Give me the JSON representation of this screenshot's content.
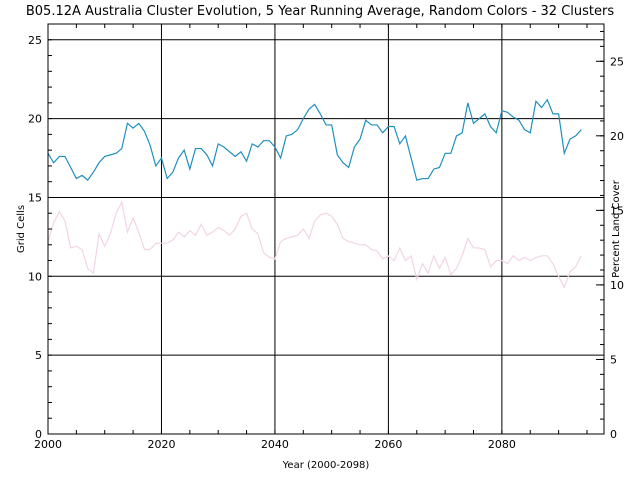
{
  "chart_data": {
    "type": "line",
    "title": "B05.12A Australia Cluster Evolution, 5 Year Running Average, Random Colors - 32 Clusters",
    "xlabel": "Year (2000-2098)",
    "ylabel": "Grid Cells",
    "y2label": "Percent Land Cover",
    "xlim": [
      2000,
      2098
    ],
    "ylim": [
      0,
      26
    ],
    "y2lim": [
      0,
      27.5
    ],
    "xticks": [
      "2000",
      "2020",
      "2040",
      "2060",
      "2080"
    ],
    "yticks": [
      "0",
      "5",
      "10",
      "15",
      "20",
      "25"
    ],
    "y2ticks": [
      "0",
      "5",
      "10",
      "15",
      "20",
      "25"
    ],
    "grid": true,
    "series": [
      {
        "color": "#1f8fbf",
        "x": [
          2000,
          2001,
          2002,
          2003,
          2004,
          2005,
          2006,
          2007,
          2008,
          2009,
          2010,
          2011,
          2012,
          2013,
          2014,
          2015,
          2016,
          2017,
          2018,
          2019,
          2020,
          2021,
          2022,
          2023,
          2024,
          2025,
          2026,
          2027,
          2028,
          2029,
          2030,
          2031,
          2032,
          2033,
          2034,
          2035,
          2036,
          2037,
          2038,
          2039,
          2040,
          2041,
          2042,
          2043,
          2044,
          2045,
          2046,
          2047,
          2048,
          2049,
          2050,
          2051,
          2052,
          2053,
          2054,
          2055,
          2056,
          2057,
          2058,
          2059,
          2060,
          2061,
          2062,
          2063,
          2064,
          2065,
          2066,
          2067,
          2068,
          2069,
          2070,
          2071,
          2072,
          2073,
          2074,
          2075,
          2076,
          2077,
          2078,
          2079,
          2080,
          2081,
          2082,
          2083,
          2084,
          2085,
          2086,
          2087,
          2088,
          2089,
          2090,
          2091,
          2092,
          2093,
          2094
        ],
        "values": [
          17.8,
          17.2,
          17.6,
          17.6,
          16.9,
          16.2,
          16.4,
          16.1,
          16.6,
          17.2,
          17.6,
          17.7,
          17.8,
          18.1,
          19.7,
          19.4,
          19.7,
          19.2,
          18.3,
          17.0,
          17.5,
          16.2,
          16.6,
          17.5,
          18.0,
          16.8,
          18.1,
          18.1,
          17.7,
          17.0,
          18.4,
          18.2,
          17.9,
          17.6,
          17.9,
          17.3,
          18.4,
          18.2,
          18.6,
          18.6,
          18.2,
          17.5,
          18.9,
          19.0,
          19.3,
          20.0,
          20.6,
          20.9,
          20.3,
          19.6,
          19.6,
          17.7,
          17.2,
          16.9,
          18.2,
          18.7,
          19.9,
          19.6,
          19.6,
          19.1,
          19.5,
          19.5,
          18.4,
          18.9,
          17.5,
          16.1,
          16.2,
          16.2,
          16.8,
          16.9,
          17.8,
          17.8,
          18.9,
          19.1,
          21.0,
          19.7,
          20.0,
          20.3,
          19.5,
          19.1,
          20.5,
          20.4,
          20.1,
          19.9,
          19.3,
          19.1,
          21.1,
          20.7,
          21.2,
          20.3,
          20.3,
          17.8,
          18.7,
          18.9,
          19.3
        ]
      },
      {
        "color": "#f2d4e6",
        "x": [
          2000,
          2001,
          2002,
          2003,
          2004,
          2005,
          2006,
          2007,
          2008,
          2009,
          2010,
          2011,
          2012,
          2013,
          2014,
          2015,
          2016,
          2017,
          2018,
          2019,
          2020,
          2021,
          2022,
          2023,
          2024,
          2025,
          2026,
          2027,
          2028,
          2029,
          2030,
          2031,
          2032,
          2033,
          2034,
          2035,
          2036,
          2037,
          2038,
          2039,
          2040,
          2041,
          2042,
          2043,
          2044,
          2045,
          2046,
          2047,
          2048,
          2049,
          2050,
          2051,
          2052,
          2053,
          2054,
          2055,
          2056,
          2057,
          2058,
          2059,
          2060,
          2061,
          2062,
          2063,
          2064,
          2065,
          2066,
          2067,
          2068,
          2069,
          2070,
          2071,
          2072,
          2073,
          2074,
          2075,
          2076,
          2077,
          2078,
          2079,
          2080,
          2081,
          2082,
          2083,
          2084,
          2085,
          2086,
          2087,
          2088,
          2089,
          2090,
          2091,
          2092,
          2093,
          2094
        ],
        "values": [
          12.2,
          13.4,
          14.1,
          13.5,
          11.8,
          11.9,
          11.7,
          10.5,
          10.2,
          12.7,
          11.9,
          12.7,
          14.0,
          14.7,
          12.8,
          13.7,
          12.8,
          11.7,
          11.7,
          12.1,
          12.1,
          12.1,
          12.3,
          12.8,
          12.5,
          12.9,
          12.6,
          13.3,
          12.6,
          12.8,
          13.1,
          12.9,
          12.6,
          13.0,
          13.8,
          14.0,
          13.0,
          12.7,
          11.5,
          11.2,
          11.1,
          12.2,
          12.4,
          12.5,
          12.6,
          13.0,
          12.4,
          13.5,
          13.9,
          14.0,
          13.8,
          13.3,
          12.4,
          12.2,
          12.1,
          12.0,
          12.0,
          11.7,
          11.6,
          11.1,
          11.3,
          11.0,
          11.8,
          11.0,
          11.3,
          9.8,
          10.8,
          10.2,
          11.3,
          10.5,
          11.2,
          10.1,
          10.5,
          11.3,
          12.4,
          11.8,
          11.8,
          11.7,
          10.6,
          11.0,
          11.0,
          10.8,
          11.3,
          11.0,
          11.2,
          11.0,
          11.2,
          11.3,
          11.3,
          10.8,
          10.0,
          9.3,
          10.3,
          10.6,
          11.3
        ]
      }
    ]
  }
}
